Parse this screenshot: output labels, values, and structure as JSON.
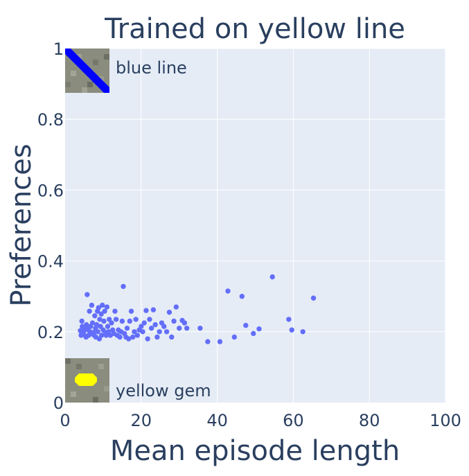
{
  "chart_data": {
    "type": "scatter",
    "title": "Trained on yellow line",
    "xlabel": "Mean episode length",
    "ylabel": "Preferences",
    "xlim": [
      0,
      100
    ],
    "ylim": [
      0,
      1
    ],
    "x_ticks": [
      0,
      20,
      40,
      60,
      80,
      100
    ],
    "y_ticks": [
      0,
      0.2,
      0.4,
      0.6,
      0.8,
      1
    ],
    "y_tick_labels": [
      "0",
      "0.2",
      "0.4",
      "0.6",
      "0.8",
      "1"
    ],
    "grid": true,
    "marker_color": "#636efa",
    "plot_bg": "#e5ecf6",
    "annotations": {
      "top": {
        "text": "blue line",
        "icon": "blue-line-icon"
      },
      "bottom": {
        "text": "yellow gem",
        "icon": "yellow-gem-icon"
      }
    },
    "points": [
      [
        4.0,
        0.203
      ],
      [
        4.2,
        0.19
      ],
      [
        4.4,
        0.23
      ],
      [
        4.5,
        0.215
      ],
      [
        4.7,
        0.197
      ],
      [
        4.9,
        0.192
      ],
      [
        5.1,
        0.21
      ],
      [
        5.3,
        0.205
      ],
      [
        5.5,
        0.185
      ],
      [
        5.6,
        0.22
      ],
      [
        5.8,
        0.305
      ],
      [
        6.0,
        0.208
      ],
      [
        6.2,
        0.19
      ],
      [
        6.4,
        0.258
      ],
      [
        6.5,
        0.2
      ],
      [
        6.7,
        0.215
      ],
      [
        6.9,
        0.195
      ],
      [
        7.0,
        0.275
      ],
      [
        7.2,
        0.225
      ],
      [
        7.4,
        0.198
      ],
      [
        7.6,
        0.19
      ],
      [
        7.8,
        0.245
      ],
      [
        8.0,
        0.21
      ],
      [
        8.1,
        0.185
      ],
      [
        8.3,
        0.22
      ],
      [
        8.5,
        0.258
      ],
      [
        8.6,
        0.2
      ],
      [
        8.8,
        0.268
      ],
      [
        9.0,
        0.18
      ],
      [
        9.1,
        0.235
      ],
      [
        9.3,
        0.215
      ],
      [
        9.5,
        0.25
      ],
      [
        9.6,
        0.19
      ],
      [
        9.8,
        0.275
      ],
      [
        10.0,
        0.205
      ],
      [
        10.2,
        0.23
      ],
      [
        10.4,
        0.258
      ],
      [
        10.6,
        0.198
      ],
      [
        10.8,
        0.19
      ],
      [
        11.0,
        0.27
      ],
      [
        11.2,
        0.215
      ],
      [
        11.4,
        0.2
      ],
      [
        11.6,
        0.235
      ],
      [
        11.9,
        0.19
      ],
      [
        12.2,
        0.225
      ],
      [
        12.5,
        0.205
      ],
      [
        12.8,
        0.195
      ],
      [
        13.1,
        0.258
      ],
      [
        13.4,
        0.235
      ],
      [
        13.7,
        0.19
      ],
      [
        14.0,
        0.205
      ],
      [
        14.4,
        0.185
      ],
      [
        14.7,
        0.2
      ],
      [
        15.0,
        0.23
      ],
      [
        15.3,
        0.328
      ],
      [
        15.6,
        0.195
      ],
      [
        16.0,
        0.185
      ],
      [
        16.3,
        0.21
      ],
      [
        16.7,
        0.18
      ],
      [
        17.0,
        0.23
      ],
      [
        17.4,
        0.258
      ],
      [
        17.8,
        0.185
      ],
      [
        18.2,
        0.2
      ],
      [
        18.6,
        0.235
      ],
      [
        19.0,
        0.19
      ],
      [
        19.5,
        0.205
      ],
      [
        20.0,
        0.215
      ],
      [
        20.4,
        0.2
      ],
      [
        20.8,
        0.225
      ],
      [
        21.3,
        0.26
      ],
      [
        21.7,
        0.18
      ],
      [
        22.2,
        0.235
      ],
      [
        22.7,
        0.21
      ],
      [
        23.2,
        0.262
      ],
      [
        23.7,
        0.22
      ],
      [
        24.2,
        0.185
      ],
      [
        24.8,
        0.2
      ],
      [
        25.4,
        0.225
      ],
      [
        26.0,
        0.215
      ],
      [
        26.7,
        0.2
      ],
      [
        27.4,
        0.255
      ],
      [
        28.0,
        0.185
      ],
      [
        28.6,
        0.23
      ],
      [
        29.2,
        0.27
      ],
      [
        30.0,
        0.21
      ],
      [
        30.8,
        0.232
      ],
      [
        31.4,
        0.225
      ],
      [
        32.0,
        0.21
      ],
      [
        35.5,
        0.21
      ],
      [
        37.5,
        0.172
      ],
      [
        40.7,
        0.172
      ],
      [
        42.8,
        0.315
      ],
      [
        44.5,
        0.185
      ],
      [
        46.5,
        0.3
      ],
      [
        47.5,
        0.218
      ],
      [
        49.5,
        0.195
      ],
      [
        51.0,
        0.208
      ],
      [
        54.5,
        0.355
      ],
      [
        58.8,
        0.235
      ],
      [
        59.6,
        0.205
      ],
      [
        62.5,
        0.2
      ],
      [
        65.3,
        0.295
      ]
    ]
  }
}
